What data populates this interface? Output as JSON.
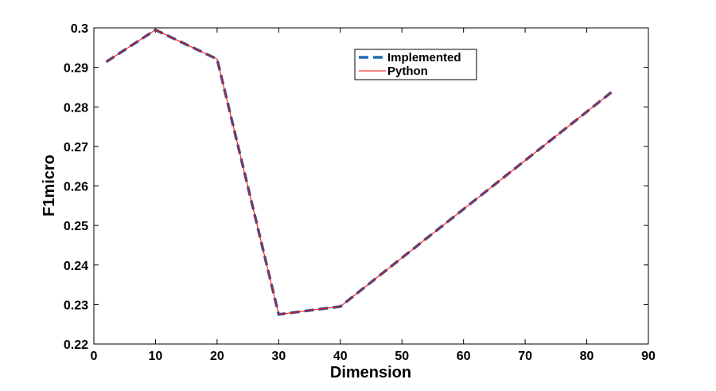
{
  "chart_data": {
    "type": "line",
    "title": "",
    "xlabel": "Dimension",
    "ylabel": "F1micro",
    "xlim": [
      0,
      90
    ],
    "ylim": [
      0.22,
      0.3
    ],
    "xticks": [
      0,
      10,
      20,
      30,
      40,
      50,
      60,
      70,
      80,
      90
    ],
    "yticks": [
      0.22,
      0.23,
      0.24,
      0.25,
      0.26,
      0.27,
      0.28,
      0.29,
      0.3
    ],
    "xtick_labels": [
      "0",
      "10",
      "20",
      "30",
      "40",
      "50",
      "60",
      "70",
      "80",
      "90"
    ],
    "ytick_labels": [
      "0.22",
      "0.23",
      "0.24",
      "0.25",
      "0.26",
      "0.27",
      "0.28",
      "0.29",
      "0.3"
    ],
    "grid": false,
    "legend_position": "top-right",
    "x": [
      2,
      10,
      20,
      30,
      40,
      84
    ],
    "series": [
      {
        "name": "Implemented",
        "values": [
          0.2914,
          0.2995,
          0.2921,
          0.2275,
          0.2295,
          0.2837
        ],
        "color": "#2f5b9a",
        "style": "dashed"
      },
      {
        "name": "Python",
        "values": [
          0.2914,
          0.2995,
          0.2921,
          0.2275,
          0.2295,
          0.2837
        ],
        "color": "#ff0000",
        "style": "solid"
      }
    ]
  }
}
